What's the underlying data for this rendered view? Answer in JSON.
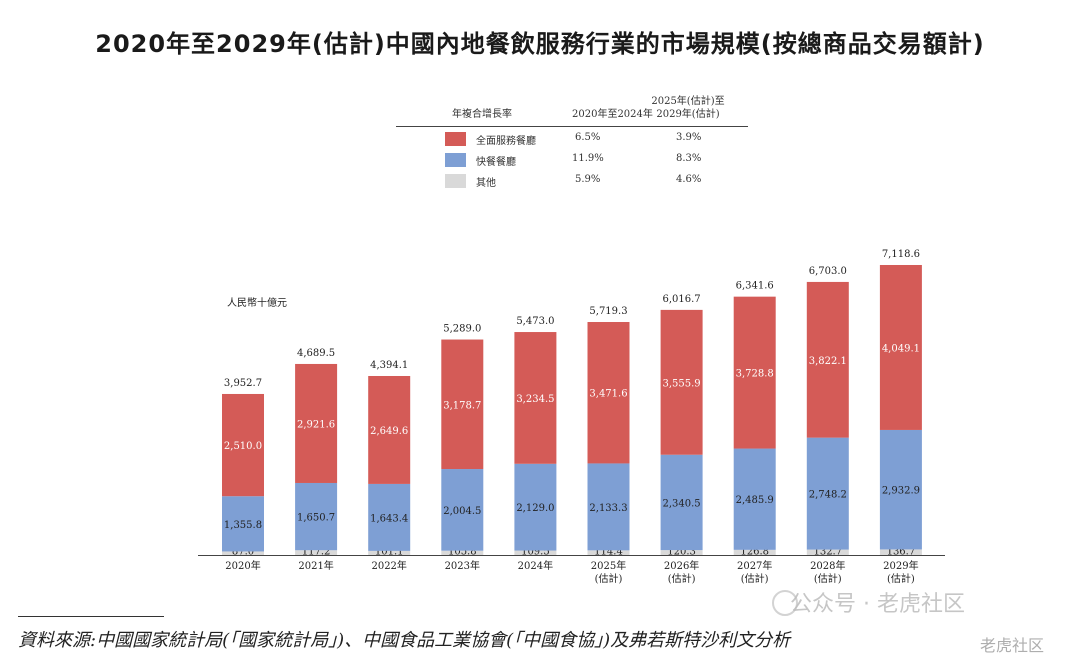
{
  "title": "2020年至2029年(估計)中國內地餐飲服務行業的市場規模(按總商品交易額計)",
  "legend": {
    "col_header": "年複合增長率",
    "period1_header": "2020年至2024年",
    "period2_header_line1": "2025年(估計)至",
    "period2_header_line2": "2029年(估計)",
    "rows": [
      {
        "label": "全面服務餐廳",
        "cagr1": "6.5%",
        "cagr2": "3.9%",
        "color": "#d45b57"
      },
      {
        "label": "快餐餐廳",
        "cagr1": "11.9%",
        "cagr2": "8.3%",
        "color": "#7e9fd4"
      },
      {
        "label": "其他",
        "cagr1": "5.9%",
        "cagr2": "4.6%",
        "color": "#d9d9d9"
      }
    ]
  },
  "unit_label": "人民幣十億元",
  "chart_data": {
    "type": "bar",
    "stacked": true,
    "categories": [
      "2020年",
      "2021年",
      "2022年",
      "2023年",
      "2024年",
      "2025年",
      "2026年",
      "2027年",
      "2028年",
      "2029年"
    ],
    "category_sublabels": [
      "",
      "",
      "",
      "",
      "",
      "(估計)",
      "(估計)",
      "(估計)",
      "(估計)",
      "(估計)"
    ],
    "series": [
      {
        "name": "其他",
        "color": "#d9d9d9",
        "values": [
          87.0,
          117.2,
          101.1,
          105.8,
          109.5,
          114.4,
          120.3,
          126.8,
          132.7,
          136.7
        ],
        "labels": [
          "87.0",
          "117.2",
          "101.1",
          "105.8",
          "109.5",
          "114.4",
          "120.3",
          "126.8",
          "132.7",
          "136.7"
        ]
      },
      {
        "name": "快餐餐廳",
        "color": "#7e9fd4",
        "values": [
          1355.8,
          1650.7,
          1643.4,
          2004.5,
          2129.0,
          2133.3,
          2340.5,
          2485.9,
          2748.2,
          2932.9
        ],
        "labels": [
          "1,355.8",
          "1,650.7",
          "1,643.4",
          "2,004.5",
          "2,129.0",
          "2,133.3",
          "2,340.5",
          "2,485.9",
          "2,748.2",
          "2,932.9"
        ]
      },
      {
        "name": "全面服務餐廳",
        "color": "#d45b57",
        "values": [
          2510.0,
          2921.6,
          2649.6,
          3178.7,
          3234.5,
          3471.6,
          3555.9,
          3728.8,
          3822.1,
          4049.1
        ],
        "labels": [
          "2,510.0",
          "2,921.6",
          "2,649.6",
          "3,178.7",
          "3,234.5",
          "3,471.6",
          "3,555.9",
          "3,728.8",
          "3,822.1",
          "4,049.1"
        ]
      }
    ],
    "totals": [
      3952.7,
      4689.5,
      4394.1,
      5289.0,
      5473.0,
      5719.3,
      6016.7,
      6341.6,
      6703.0,
      7118.6
    ],
    "total_labels": [
      "3,952.7",
      "4,689.5",
      "4,394.1",
      "5,289.0",
      "5,473.0",
      "5,719.3",
      "6,016.7",
      "6,341.6",
      "6,703.0",
      "7,118.6"
    ],
    "ylim": [
      0,
      7118.6
    ]
  },
  "source_text": "資料來源:中國國家統計局(「國家統計局」)、中國食品工業協會(「中國食協」)及弗若斯特沙利文分析",
  "watermark": "公众号 · 老虎社区",
  "watermark2": "老虎社区"
}
